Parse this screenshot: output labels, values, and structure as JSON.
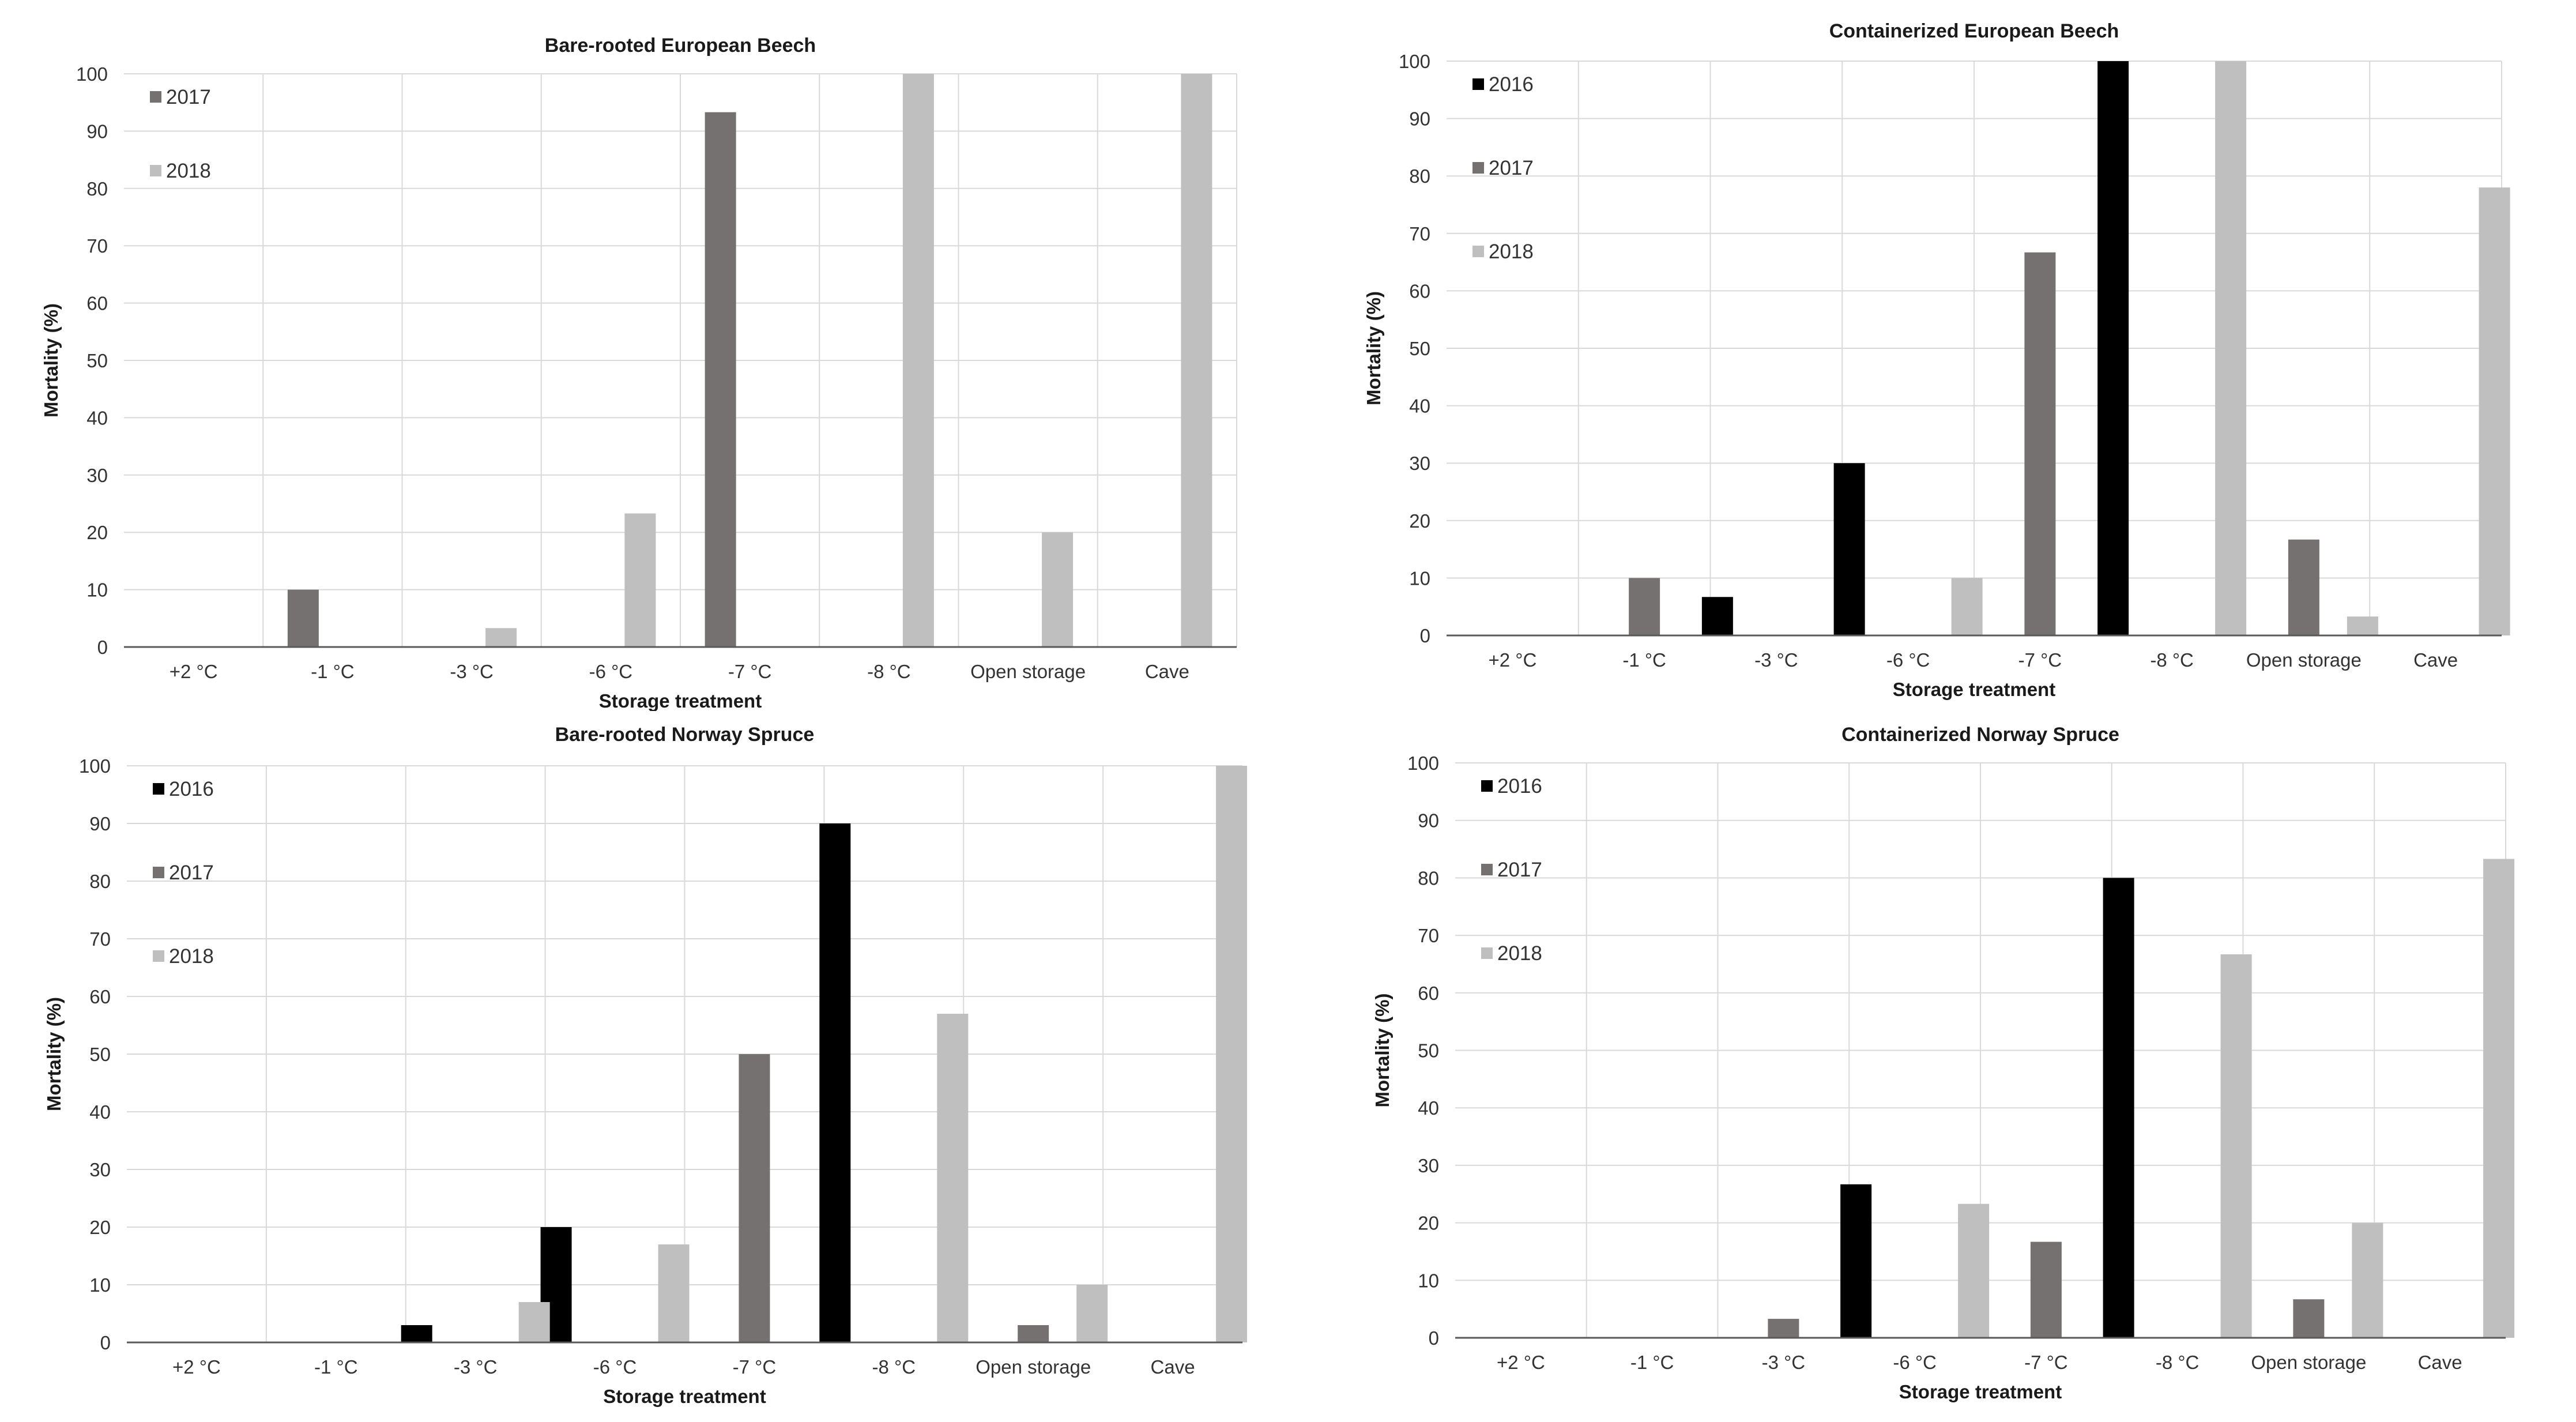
{
  "chart_data": [
    {
      "type": "bar",
      "title": "Bare-rooted European Beech",
      "xlabel": "Storage treatment",
      "ylabel": "Mortality (%)",
      "ylim": [
        0,
        100
      ],
      "yticks": [
        "0",
        "10",
        "20",
        "30",
        "40",
        "50",
        "60",
        "70",
        "80",
        "90",
        "100"
      ],
      "grid": true,
      "legend_position": "top-left",
      "categories": [
        "+2 °C",
        "-1 °C",
        "-3 °C",
        "-6 °C",
        "-7 °C",
        "-8 °C",
        "Open storage",
        "Cave"
      ],
      "series": [
        {
          "name": "2017",
          "color": "#767171",
          "values": [
            0,
            10,
            0,
            0,
            93.3,
            0,
            0,
            0
          ]
        },
        {
          "name": "2018",
          "color": "#bfbfbf",
          "values": [
            0,
            0,
            3.3,
            23.3,
            0,
            100,
            20,
            100
          ]
        }
      ]
    },
    {
      "type": "bar",
      "title": "Containerized European Beech",
      "xlabel": "Storage treatment",
      "ylabel": "Mortality (%)",
      "ylim": [
        0,
        100
      ],
      "yticks": [
        "0",
        "10",
        "20",
        "30",
        "40",
        "50",
        "60",
        "70",
        "80",
        "90",
        "100"
      ],
      "grid": true,
      "legend_position": "top-left",
      "categories": [
        "+2 °C",
        "-1 °C",
        "-3 °C",
        "-6 °C",
        "-7 °C",
        "-8 °C",
        "Open storage",
        "Cave"
      ],
      "series": [
        {
          "name": "2016",
          "color": "#000000",
          "values": [
            0,
            0,
            6.7,
            30,
            0,
            100,
            0,
            0
          ]
        },
        {
          "name": "2017",
          "color": "#767171",
          "values": [
            0,
            10,
            0,
            0,
            66.7,
            0,
            16.7,
            0
          ]
        },
        {
          "name": "2018",
          "color": "#bfbfbf",
          "values": [
            0,
            0,
            0,
            10,
            0,
            100,
            3.3,
            78
          ]
        }
      ]
    },
    {
      "type": "bar",
      "title": "Bare-rooted Norway Spruce",
      "xlabel": "Storage treatment",
      "ylabel": "Mortality (%)",
      "ylim": [
        0,
        100
      ],
      "yticks": [
        "0",
        "10",
        "20",
        "30",
        "40",
        "50",
        "60",
        "70",
        "80",
        "90",
        "100"
      ],
      "grid": true,
      "legend_position": "top-left",
      "categories": [
        "+2 °C",
        "-1 °C",
        "-3 °C",
        "-6 °C",
        "-7 °C",
        "-8 °C",
        "Open storage",
        "Cave"
      ],
      "series": [
        {
          "name": "2016",
          "color": "#000000",
          "values": [
            0,
            0,
            3,
            20,
            0,
            90,
            0,
            0
          ]
        },
        {
          "name": "2017",
          "color": "#767171",
          "values": [
            0,
            0,
            0,
            0,
            50,
            0,
            3,
            0
          ]
        },
        {
          "name": "2018",
          "color": "#bfbfbf",
          "values": [
            0,
            0,
            7,
            17,
            0,
            57,
            10,
            100
          ]
        }
      ]
    },
    {
      "type": "bar",
      "title": "Containerized Norway Spruce",
      "xlabel": "Storage treatment",
      "ylabel": "Mortality (%)",
      "ylim": [
        0,
        100
      ],
      "yticks": [
        "0",
        "10",
        "20",
        "30",
        "40",
        "50",
        "60",
        "70",
        "80",
        "90",
        "100"
      ],
      "grid": true,
      "legend_position": "top-left",
      "categories": [
        "+2 °C",
        "-1 °C",
        "-3 °C",
        "-6 °C",
        "-7 °C",
        "-8 °C",
        "Open storage",
        "Cave"
      ],
      "series": [
        {
          "name": "2016",
          "color": "#000000",
          "values": [
            0,
            0,
            0,
            26.7,
            0,
            80,
            0,
            0
          ]
        },
        {
          "name": "2017",
          "color": "#767171",
          "values": [
            0,
            0,
            3.3,
            0,
            16.7,
            0,
            6.7,
            0
          ]
        },
        {
          "name": "2018",
          "color": "#bfbfbf",
          "values": [
            0,
            0,
            0,
            23.3,
            0,
            66.7,
            20,
            83.3
          ]
        }
      ]
    }
  ]
}
